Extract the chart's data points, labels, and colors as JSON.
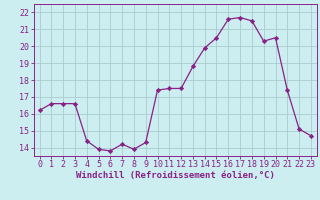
{
  "x": [
    0,
    1,
    2,
    3,
    4,
    5,
    6,
    7,
    8,
    9,
    10,
    11,
    12,
    13,
    14,
    15,
    16,
    17,
    18,
    19,
    20,
    21,
    22,
    23
  ],
  "y": [
    16.2,
    16.6,
    16.6,
    16.6,
    14.4,
    13.9,
    13.8,
    14.2,
    13.9,
    14.3,
    17.4,
    17.5,
    17.5,
    18.8,
    19.9,
    20.5,
    21.6,
    21.7,
    21.5,
    20.3,
    20.5,
    17.4,
    15.1,
    14.7
  ],
  "line_color": "#882288",
  "marker": "D",
  "marker_size": 2.2,
  "bg_color": "#cceef0",
  "grid_color": "#aacccc",
  "xlabel": "Windchill (Refroidissement éolien,°C)",
  "ylim": [
    13.5,
    22.5
  ],
  "yticks": [
    14,
    15,
    16,
    17,
    18,
    19,
    20,
    21,
    22
  ],
  "xticks": [
    0,
    1,
    2,
    3,
    4,
    5,
    6,
    7,
    8,
    9,
    10,
    11,
    12,
    13,
    14,
    15,
    16,
    17,
    18,
    19,
    20,
    21,
    22,
    23
  ],
  "label_fontsize": 6.5,
  "tick_fontsize": 6.0
}
